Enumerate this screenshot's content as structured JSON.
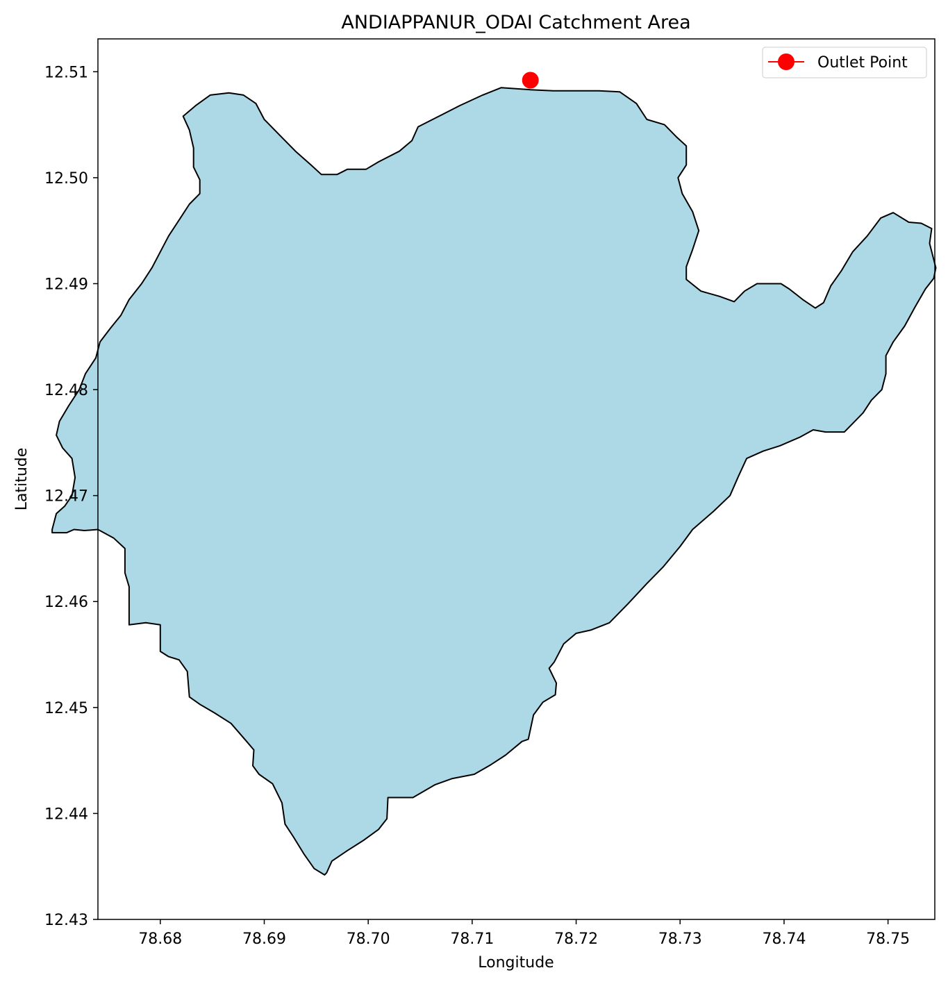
{
  "chart_data": {
    "type": "map",
    "title": "ANDIAPPANUR_ODAI Catchment Area",
    "xlabel": "Longitude",
    "ylabel": "Latitude",
    "xlim": [
      78.674,
      78.7545
    ],
    "ylim": [
      12.43,
      12.5131
    ],
    "xticks": [
      78.68,
      78.69,
      78.7,
      78.71,
      78.72,
      78.73,
      78.74,
      78.75
    ],
    "yticks": [
      12.43,
      12.44,
      12.45,
      12.46,
      12.47,
      12.48,
      12.49,
      12.5,
      12.51
    ],
    "xtick_labels": [
      "78.68",
      "78.69",
      "78.70",
      "78.71",
      "78.72",
      "78.73",
      "78.74",
      "78.75"
    ],
    "ytick_labels": [
      "12.43",
      "12.44",
      "12.45",
      "12.46",
      "12.47",
      "12.48",
      "12.49",
      "12.50",
      "12.51"
    ],
    "grid": false,
    "legend": {
      "placement": "top-right",
      "entries": [
        "Outlet Point"
      ]
    },
    "fill_color": "#add8e6",
    "edge_color": "#000000",
    "outlet_color": "#ff0000",
    "outlet_point": {
      "name": "Outlet Point",
      "lon": 78.7156,
      "lat": 12.5092
    },
    "catchment_boundary": [
      [
        78.7156,
        12.5083
      ],
      [
        78.7178,
        12.5082
      ],
      [
        78.7205,
        12.5082
      ],
      [
        78.7222,
        12.5082
      ],
      [
        78.7242,
        12.5081
      ],
      [
        78.7258,
        12.507
      ],
      [
        78.7268,
        12.5055
      ],
      [
        78.7285,
        12.505
      ],
      [
        78.7297,
        12.5038
      ],
      [
        78.7306,
        12.503
      ],
      [
        78.7306,
        12.5012
      ],
      [
        78.7298,
        12.5
      ],
      [
        78.7302,
        12.4985
      ],
      [
        78.7312,
        12.4968
      ],
      [
        78.7318,
        12.495
      ],
      [
        78.7312,
        12.4932
      ],
      [
        78.7306,
        12.4916
      ],
      [
        78.7306,
        12.4904
      ],
      [
        78.732,
        12.4893
      ],
      [
        78.7338,
        12.4888
      ],
      [
        78.7352,
        12.4883
      ],
      [
        78.7362,
        12.4893
      ],
      [
        78.7374,
        12.49
      ],
      [
        78.7397,
        12.49
      ],
      [
        78.7405,
        12.4895
      ],
      [
        78.7418,
        12.4885
      ],
      [
        78.743,
        12.4877
      ],
      [
        78.7438,
        12.4882
      ],
      [
        78.7445,
        12.4898
      ],
      [
        78.7455,
        12.4912
      ],
      [
        78.7466,
        12.493
      ],
      [
        78.748,
        12.4945
      ],
      [
        78.7493,
        12.4962
      ],
      [
        78.7505,
        12.4967
      ],
      [
        78.752,
        12.4958
      ],
      [
        78.7532,
        12.4957
      ],
      [
        78.7542,
        12.4952
      ],
      [
        78.754,
        12.4938
      ],
      [
        78.7546,
        12.4915
      ],
      [
        78.7544,
        12.4905
      ],
      [
        78.7536,
        12.4895
      ],
      [
        78.7526,
        12.4878
      ],
      [
        78.7516,
        12.486
      ],
      [
        78.7505,
        12.4845
      ],
      [
        78.7498,
        12.4832
      ],
      [
        78.7498,
        12.4815
      ],
      [
        78.7494,
        12.48
      ],
      [
        78.7484,
        12.479
      ],
      [
        78.7476,
        12.4778
      ],
      [
        78.7466,
        12.4768
      ],
      [
        78.7458,
        12.476
      ],
      [
        78.744,
        12.476
      ],
      [
        78.7428,
        12.4762
      ],
      [
        78.7415,
        12.4755
      ],
      [
        78.7396,
        12.4747
      ],
      [
        78.738,
        12.4742
      ],
      [
        78.7364,
        12.4735
      ],
      [
        78.7356,
        12.4718
      ],
      [
        78.7348,
        12.47
      ],
      [
        78.7332,
        12.4685
      ],
      [
        78.7312,
        12.4668
      ],
      [
        78.73,
        12.4652
      ],
      [
        78.7284,
        12.4633
      ],
      [
        78.7268,
        12.4617
      ],
      [
        78.725,
        12.4598
      ],
      [
        78.7232,
        12.458
      ],
      [
        78.7214,
        12.4573
      ],
      [
        78.72,
        12.457
      ],
      [
        78.7188,
        12.456
      ],
      [
        78.7179,
        12.4543
      ],
      [
        78.7174,
        12.4537
      ],
      [
        78.7181,
        12.4523
      ],
      [
        78.718,
        12.4512
      ],
      [
        78.7168,
        12.4505
      ],
      [
        78.7159,
        12.4493
      ],
      [
        78.7154,
        12.447
      ],
      [
        78.7148,
        12.4468
      ],
      [
        78.7132,
        12.4455
      ],
      [
        78.7118,
        12.4446
      ],
      [
        78.7102,
        12.4437
      ],
      [
        78.7081,
        12.4433
      ],
      [
        78.7064,
        12.4427
      ],
      [
        78.7043,
        12.4415
      ],
      [
        78.7019,
        12.4415
      ],
      [
        78.7018,
        12.4395
      ],
      [
        78.701,
        12.4385
      ],
      [
        78.6996,
        12.4375
      ],
      [
        78.698,
        12.4365
      ],
      [
        78.6965,
        12.4355
      ],
      [
        78.696,
        12.4344
      ],
      [
        78.6958,
        12.4342
      ],
      [
        78.6948,
        12.4348
      ],
      [
        78.6938,
        12.4362
      ],
      [
        78.6928,
        12.4378
      ],
      [
        78.692,
        12.439
      ],
      [
        78.6917,
        12.441
      ],
      [
        78.6908,
        12.4428
      ],
      [
        78.6895,
        12.4437
      ],
      [
        78.6889,
        12.4445
      ],
      [
        78.689,
        12.446
      ],
      [
        78.6883,
        12.4468
      ],
      [
        78.6868,
        12.4485
      ],
      [
        78.6852,
        12.4495
      ],
      [
        78.6838,
        12.4503
      ],
      [
        78.6828,
        12.451
      ],
      [
        78.6826,
        12.4534
      ],
      [
        78.6818,
        12.4545
      ],
      [
        78.6808,
        12.4548
      ],
      [
        78.68,
        12.4553
      ],
      [
        78.68,
        12.4578
      ],
      [
        78.6786,
        12.458
      ],
      [
        78.677,
        12.4578
      ],
      [
        78.677,
        12.459
      ],
      [
        78.677,
        12.4614
      ],
      [
        78.6766,
        12.4627
      ],
      [
        78.6766,
        12.465
      ],
      [
        78.6755,
        12.466
      ],
      [
        78.674,
        12.4668
      ],
      [
        78.6727,
        12.4667
      ],
      [
        78.6717,
        12.4668
      ],
      [
        78.671,
        12.4665
      ],
      [
        78.6696,
        12.4665
      ],
      [
        78.6696,
        12.4668
      ],
      [
        78.67,
        12.4683
      ],
      [
        78.6708,
        12.469
      ],
      [
        78.6715,
        12.47
      ],
      [
        78.6718,
        12.4717
      ],
      [
        78.6715,
        12.4735
      ],
      [
        78.6706,
        12.4745
      ],
      [
        78.67,
        12.4757
      ],
      [
        78.6703,
        12.477
      ],
      [
        78.6712,
        12.4785
      ],
      [
        78.6722,
        12.48
      ],
      [
        78.6728,
        12.4815
      ],
      [
        78.6738,
        12.483
      ],
      [
        78.6742,
        12.4845
      ],
      [
        78.6752,
        12.4858
      ],
      [
        78.6762,
        12.487
      ],
      [
        78.677,
        12.4885
      ],
      [
        78.6782,
        12.49
      ],
      [
        78.6792,
        12.4915
      ],
      [
        78.68,
        12.493
      ],
      [
        78.6808,
        12.4945
      ],
      [
        78.6818,
        12.496
      ],
      [
        78.6828,
        12.4975
      ],
      [
        78.6838,
        12.4985
      ],
      [
        78.6838,
        12.4998
      ],
      [
        78.6832,
        12.501
      ],
      [
        78.6832,
        12.5028
      ],
      [
        78.6828,
        12.5045
      ],
      [
        78.6822,
        12.5058
      ],
      [
        78.6834,
        12.5068
      ],
      [
        78.6848,
        12.5078
      ],
      [
        78.6866,
        12.508
      ],
      [
        78.688,
        12.5078
      ],
      [
        78.6892,
        12.507
      ],
      [
        78.69,
        12.5055
      ],
      [
        78.6915,
        12.504
      ],
      [
        78.693,
        12.5025
      ],
      [
        78.6945,
        12.5012
      ],
      [
        78.6955,
        12.5003
      ],
      [
        78.697,
        12.5003
      ],
      [
        78.698,
        12.5008
      ],
      [
        78.6998,
        12.5008
      ],
      [
        78.701,
        12.5015
      ],
      [
        78.703,
        12.5025
      ],
      [
        78.7042,
        12.5035
      ],
      [
        78.7048,
        12.5048
      ],
      [
        78.7068,
        12.5058
      ],
      [
        78.7088,
        12.5068
      ],
      [
        78.711,
        12.5078
      ],
      [
        78.7128,
        12.5085
      ],
      [
        78.7156,
        12.5083
      ]
    ]
  }
}
